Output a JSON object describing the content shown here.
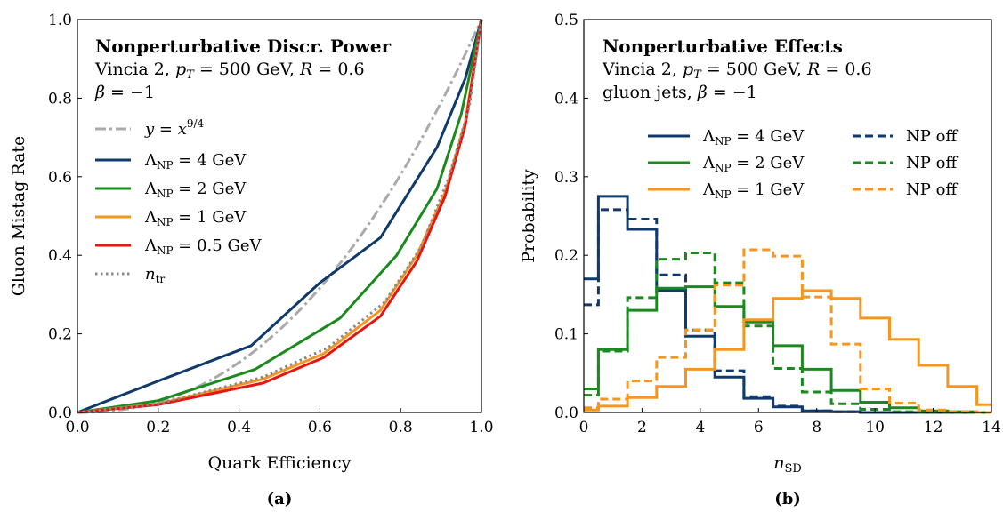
{
  "captions": [
    "(a)",
    "(b)"
  ],
  "chart_data": [
    {
      "type": "line",
      "xlabel": "Quark Efficiency",
      "ylabel": "Gluon Mistag Rate",
      "xlim": [
        0,
        1
      ],
      "ylim": [
        0,
        1
      ],
      "xticks": [
        "0.0",
        "0.2",
        "0.4",
        "0.6",
        "0.8",
        "1.0"
      ],
      "yticks": [
        "0.0",
        "0.2",
        "0.4",
        "0.6",
        "0.8",
        "1.0"
      ],
      "title_lines": [
        "Nonperturbative Discr. Power",
        "Vincia 2, p_T = 500 GeV, R = 0.6",
        "β = −1"
      ],
      "legend_placement": "upper-left",
      "series": [
        {
          "name": "y = x^{9/4}",
          "color": "#aaaaaa",
          "style": "dashdot",
          "function": "x^2.25"
        },
        {
          "name": "Λ_NP = 4 GeV",
          "color": "#0f3a6b",
          "style": "solid",
          "x": [
            0,
            0.2,
            0.43,
            0.6,
            0.75,
            0.89,
            0.96,
            1.0
          ],
          "y": [
            0,
            0.08,
            0.17,
            0.33,
            0.445,
            0.675,
            0.85,
            1.0
          ]
        },
        {
          "name": "Λ_NP = 2 GeV",
          "color": "#1b8a1e",
          "style": "solid",
          "x": [
            0,
            0.2,
            0.44,
            0.65,
            0.79,
            0.89,
            0.95,
            1.0
          ],
          "y": [
            0,
            0.03,
            0.11,
            0.24,
            0.4,
            0.57,
            0.76,
            1.0
          ]
        },
        {
          "name": "Λ_NP = 1 GeV",
          "color": "#f7961e",
          "style": "solid",
          "x": [
            0,
            0.2,
            0.46,
            0.61,
            0.75,
            0.84,
            0.91,
            0.96,
            1.0
          ],
          "y": [
            0,
            0.022,
            0.085,
            0.15,
            0.26,
            0.4,
            0.56,
            0.74,
            1.0
          ]
        },
        {
          "name": "Λ_NP = 0.5 GeV",
          "color": "#e8150f",
          "style": "solid",
          "x": [
            0,
            0.2,
            0.46,
            0.61,
            0.75,
            0.84,
            0.91,
            0.96,
            1.0
          ],
          "y": [
            0,
            0.02,
            0.075,
            0.14,
            0.245,
            0.385,
            0.55,
            0.73,
            1.0
          ]
        },
        {
          "name": "n_tr",
          "color": "#888888",
          "style": "dotted",
          "x": [
            0,
            0.2,
            0.46,
            0.62,
            0.76,
            0.85,
            0.92,
            0.97,
            1.0
          ],
          "y": [
            0,
            0.022,
            0.09,
            0.165,
            0.28,
            0.42,
            0.6,
            0.78,
            1.0
          ]
        }
      ]
    },
    {
      "type": "line",
      "style": "step-histogram",
      "xlabel": "n_SD",
      "ylabel": "Probability",
      "xlim": [
        0,
        14
      ],
      "ylim": [
        0,
        0.5
      ],
      "xticks": [
        "0",
        "2",
        "4",
        "6",
        "8",
        "10",
        "12",
        "14"
      ],
      "yticks": [
        "0.0",
        "0.1",
        "0.2",
        "0.3",
        "0.4",
        "0.5"
      ],
      "title_lines": [
        "Nonperturbative Effects",
        "Vincia 2, p_T = 500 GeV, R = 0.6",
        "gluon jets, β = −1"
      ],
      "legend_placement": "upper-right",
      "bin_edges": [
        0,
        0.5,
        1.5,
        2.5,
        3.5,
        4.5,
        5.5,
        6.5,
        7.5,
        8.5,
        9.5,
        10.5,
        11.5,
        12.5,
        13.5,
        14
      ],
      "series": [
        {
          "name": "Λ_NP = 4 GeV",
          "color": "#0f3a6b",
          "style": "solid",
          "values": [
            0.17,
            0.275,
            0.233,
            0.155,
            0.097,
            0.045,
            0.018,
            0.007,
            0.002,
            0.001,
            0,
            0,
            0,
            0,
            0
          ]
        },
        {
          "name": "NP off",
          "color": "#0f3a6b",
          "style": "dashed",
          "values": [
            0.137,
            0.258,
            0.246,
            0.175,
            0.105,
            0.053,
            0.02,
            0.008,
            0.002,
            0.001,
            0,
            0,
            0,
            0,
            0
          ]
        },
        {
          "name": "Λ_NP = 2 GeV",
          "color": "#1b8a1e",
          "style": "solid",
          "values": [
            0.03,
            0.08,
            0.13,
            0.158,
            0.16,
            0.135,
            0.115,
            0.085,
            0.055,
            0.028,
            0.013,
            0.006,
            0.002,
            0.001,
            0
          ]
        },
        {
          "name": "NP off",
          "color": "#1b8a1e",
          "style": "dashed",
          "values": [
            0.022,
            0.078,
            0.146,
            0.195,
            0.203,
            0.165,
            0.11,
            0.056,
            0.026,
            0.011,
            0.004,
            0.001,
            0,
            0,
            0
          ]
        },
        {
          "name": "Λ_NP = 1 GeV",
          "color": "#f7961e",
          "style": "solid",
          "values": [
            0.003,
            0.008,
            0.019,
            0.033,
            0.055,
            0.08,
            0.118,
            0.145,
            0.155,
            0.145,
            0.12,
            0.093,
            0.06,
            0.033,
            0.01
          ]
        },
        {
          "name": "NP off",
          "color": "#f7961e",
          "style": "dashed",
          "values": [
            0.006,
            0.017,
            0.04,
            0.07,
            0.105,
            0.162,
            0.207,
            0.199,
            0.147,
            0.087,
            0.03,
            0.012,
            0.003,
            0.001,
            0
          ]
        }
      ]
    }
  ]
}
